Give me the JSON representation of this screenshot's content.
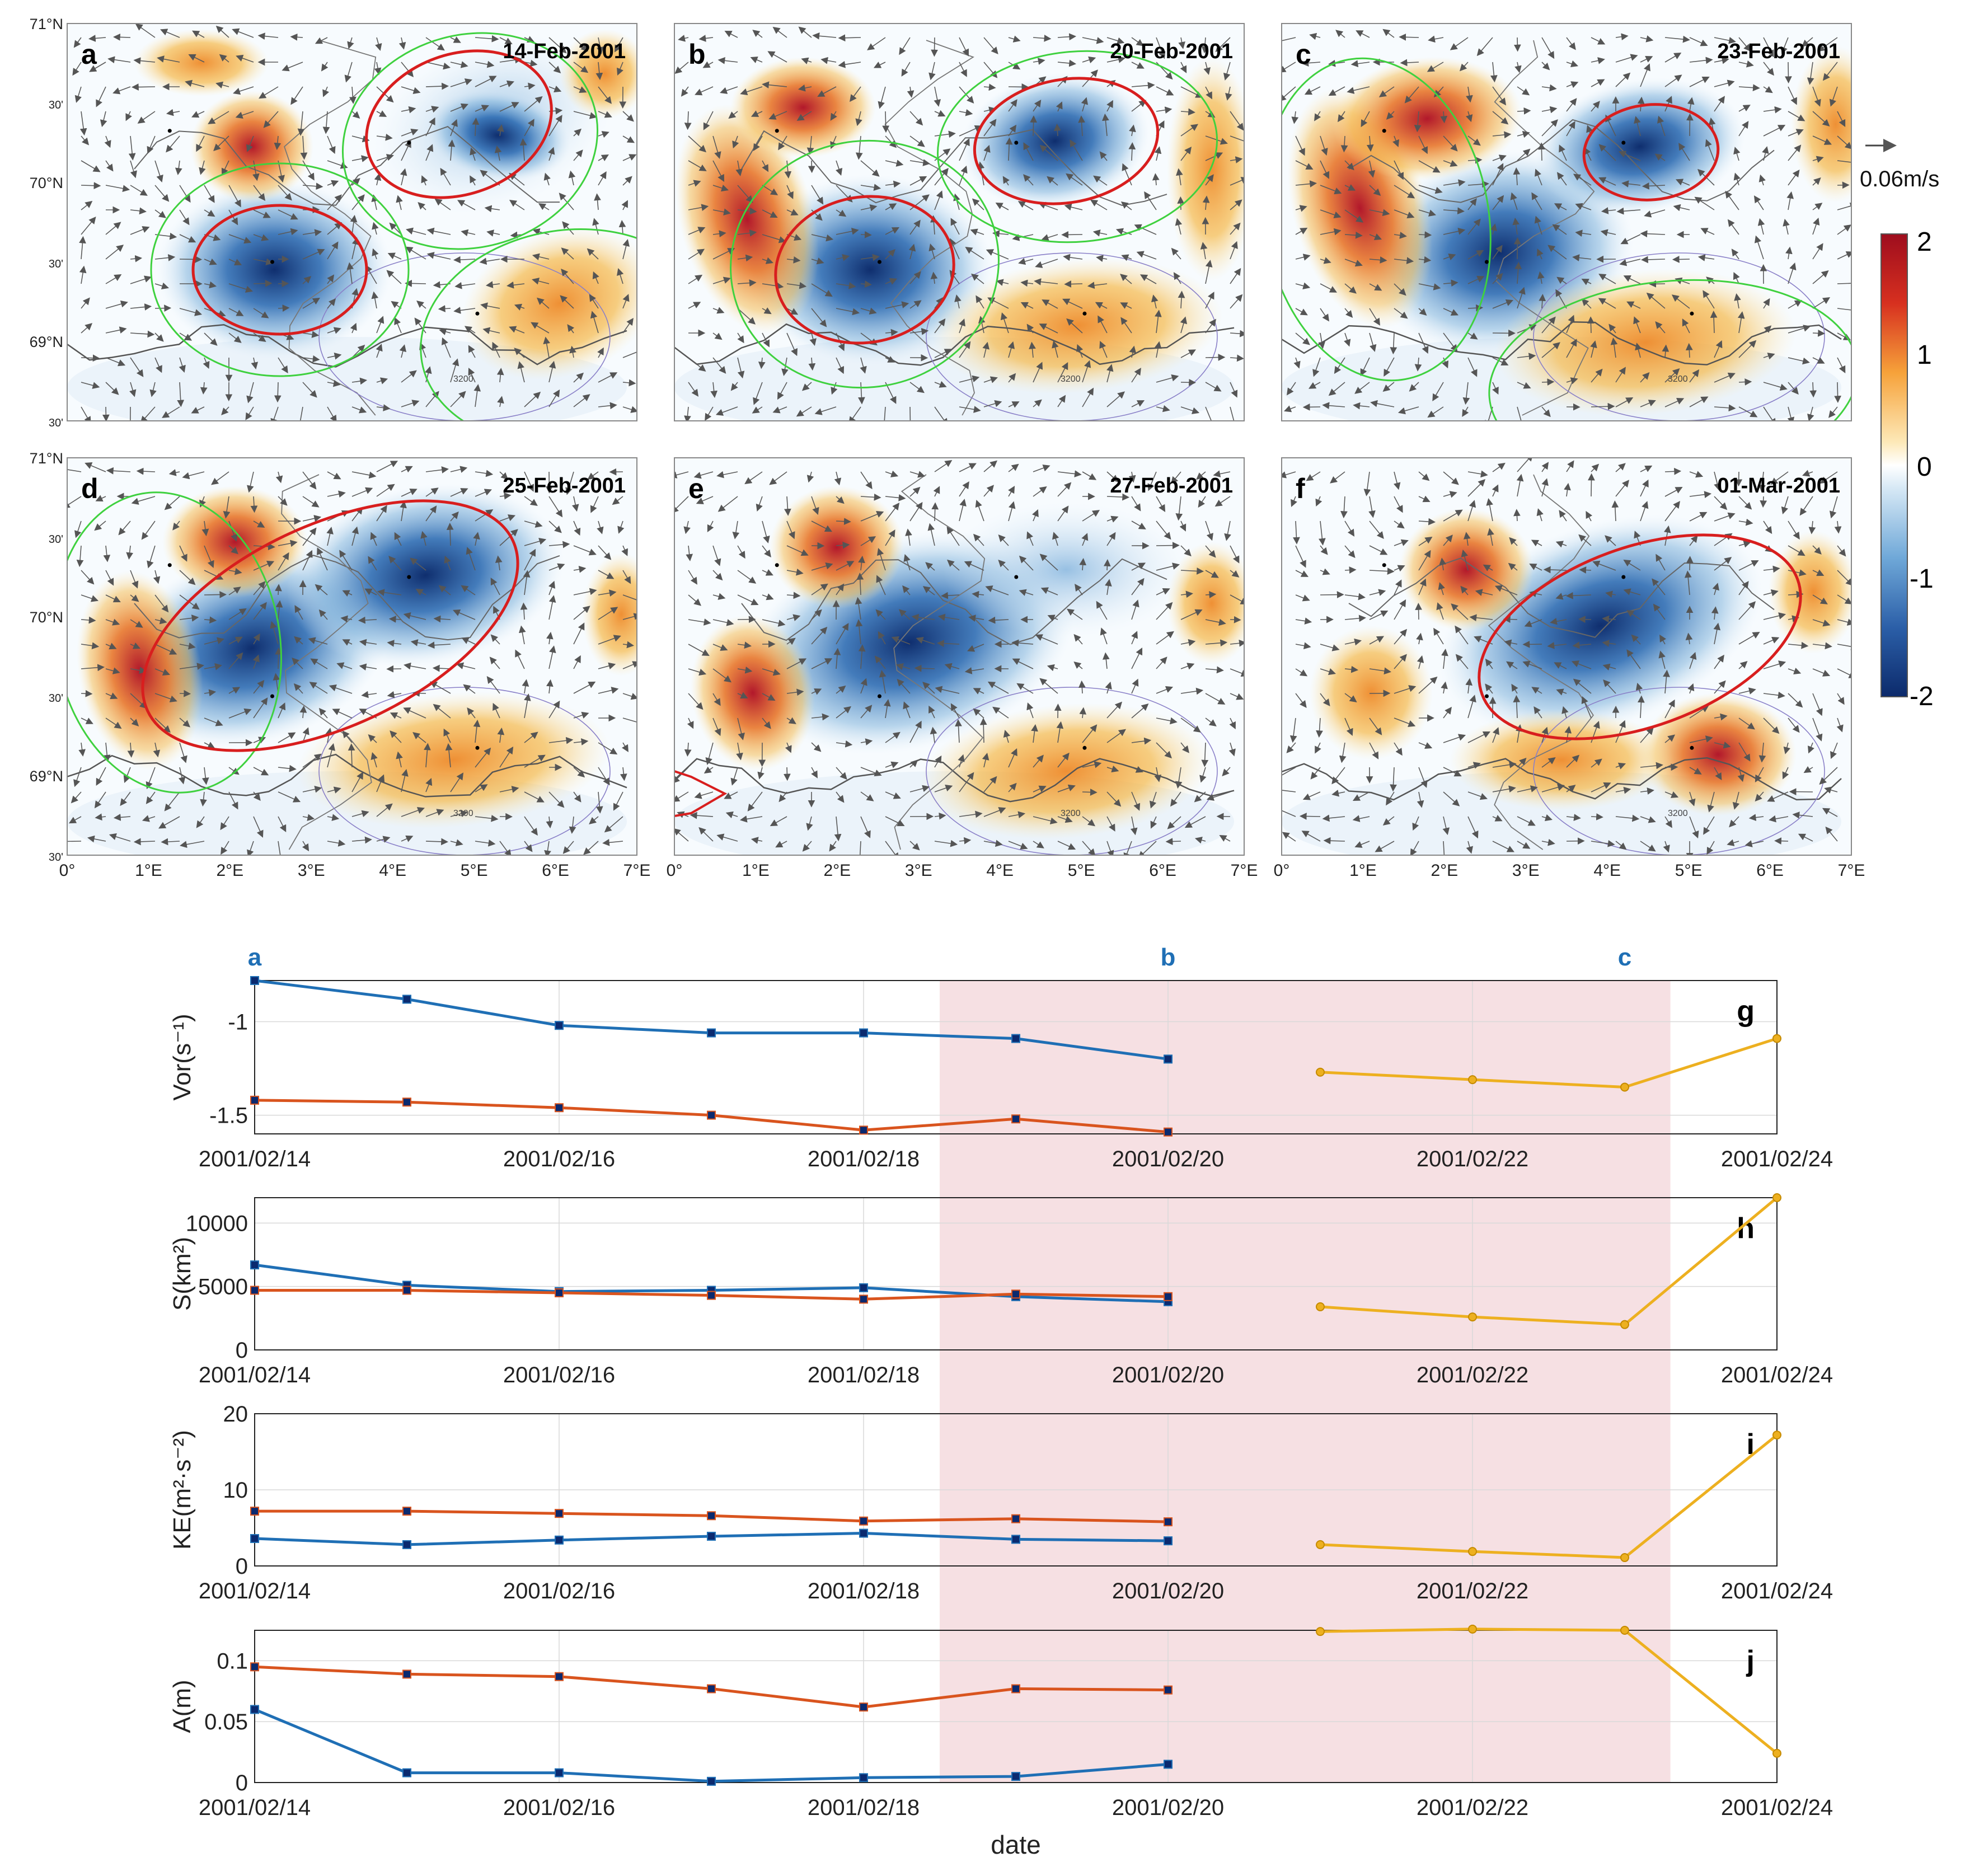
{
  "maps": {
    "panels": [
      {
        "letter": "a",
        "date": "14-Feb-2001"
      },
      {
        "letter": "b",
        "date": "20-Feb-2001"
      },
      {
        "letter": "c",
        "date": "23-Feb-2001"
      },
      {
        "letter": "d",
        "date": "25-Feb-2001"
      },
      {
        "letter": "e",
        "date": "27-Feb-2001"
      },
      {
        "letter": "f",
        "date": "01-Mar-2001"
      }
    ],
    "lat_labels": [
      "71°N",
      "30'",
      "70°N",
      "30'",
      "69°N",
      "30'"
    ],
    "lon_labels": [
      "0°",
      "1°E",
      "2°E",
      "3°E",
      "4°E",
      "5°E",
      "6°E",
      "7°E"
    ],
    "contour_label": "3200",
    "vector_scale": "0.06m/s",
    "colorbar": {
      "ticks": [
        "2",
        "1",
        "0",
        "-1",
        "-2"
      ],
      "min": -2,
      "max": 2
    }
  },
  "chart_data": [
    {
      "type": "line",
      "panel": "g",
      "ylabel": "Vor(s⁻¹)",
      "ylim": [
        -1.6,
        -0.78
      ],
      "yticks": [
        "-1",
        "-1.5"
      ],
      "x": [
        "2001/02/14",
        "2001/02/16",
        "2001/02/18",
        "2001/02/20",
        "2001/02/22",
        "2001/02/24"
      ],
      "series": [
        {
          "name": "blue",
          "color": "#1f6fb5",
          "x": [
            0,
            1,
            2,
            3,
            4,
            5,
            6
          ],
          "y": [
            -0.78,
            -0.88,
            -1.02,
            -1.06,
            -1.06,
            -1.09,
            -1.2
          ]
        },
        {
          "name": "red",
          "color": "#d9541e",
          "x": [
            0,
            1,
            2,
            3,
            4,
            5,
            6
          ],
          "y": [
            -1.42,
            -1.43,
            -1.46,
            -1.5,
            -1.58,
            -1.52,
            -1.59
          ]
        },
        {
          "name": "yellow",
          "color": "#edb020",
          "x": [
            7,
            8,
            9,
            10
          ],
          "y": [
            -1.27,
            -1.31,
            -1.35,
            -1.09
          ]
        }
      ]
    },
    {
      "type": "line",
      "panel": "h",
      "ylabel": "S(km²)",
      "ylim": [
        0,
        12000
      ],
      "yticks": [
        "0",
        "5000",
        "10000"
      ],
      "series": [
        {
          "name": "blue",
          "color": "#1f6fb5",
          "x": [
            0,
            1,
            2,
            3,
            4,
            5,
            6
          ],
          "y": [
            6700,
            5100,
            4600,
            4700,
            4900,
            4200,
            3800
          ]
        },
        {
          "name": "red",
          "color": "#d9541e",
          "x": [
            0,
            1,
            2,
            3,
            4,
            5,
            6
          ],
          "y": [
            4700,
            4700,
            4500,
            4300,
            4000,
            4400,
            4200
          ]
        },
        {
          "name": "yellow",
          "color": "#edb020",
          "x": [
            7,
            8,
            9,
            10
          ],
          "y": [
            3400,
            2600,
            2000,
            12000
          ]
        }
      ]
    },
    {
      "type": "line",
      "panel": "i",
      "ylabel": "KE(m²·s⁻²)",
      "ylim": [
        0,
        20
      ],
      "yticks": [
        "0",
        "10",
        "20"
      ],
      "series": [
        {
          "name": "blue",
          "color": "#1f6fb5",
          "x": [
            0,
            1,
            2,
            3,
            4,
            5,
            6
          ],
          "y": [
            3.6,
            2.8,
            3.4,
            3.9,
            4.3,
            3.5,
            3.3
          ]
        },
        {
          "name": "red",
          "color": "#d9541e",
          "x": [
            0,
            1,
            2,
            3,
            4,
            5,
            6
          ],
          "y": [
            7.2,
            7.2,
            6.9,
            6.6,
            5.9,
            6.2,
            5.8
          ]
        },
        {
          "name": "yellow",
          "color": "#edb020",
          "x": [
            7,
            8,
            9,
            10
          ],
          "y": [
            2.8,
            1.9,
            1.1,
            17.2
          ]
        }
      ]
    },
    {
      "type": "line",
      "panel": "j",
      "ylabel": "A(m)",
      "xlabel": "date",
      "ylim": [
        0,
        0.125
      ],
      "yticks": [
        "0",
        "0.05",
        "0.1"
      ],
      "series": [
        {
          "name": "blue",
          "color": "#1f6fb5",
          "x": [
            0,
            1,
            2,
            3,
            4,
            5,
            6
          ],
          "y": [
            0.06,
            0.008,
            0.008,
            0.001,
            0.004,
            0.005,
            0.015
          ]
        },
        {
          "name": "red",
          "color": "#d9541e",
          "x": [
            0,
            1,
            2,
            3,
            4,
            5,
            6
          ],
          "y": [
            0.095,
            0.089,
            0.087,
            0.077,
            0.062,
            0.077,
            0.076
          ]
        },
        {
          "name": "yellow",
          "color": "#edb020",
          "x": [
            7,
            8,
            9,
            10
          ],
          "y": [
            0.124,
            0.126,
            0.125,
            0.024
          ]
        }
      ]
    }
  ],
  "timeseries": {
    "x_ticks": [
      "2001/02/14",
      "2001/02/16",
      "2001/02/18",
      "2001/02/20",
      "2001/02/22",
      "2001/02/24"
    ],
    "top_markers": [
      {
        "label": "a",
        "day": 0
      },
      {
        "label": "b",
        "day": 6
      },
      {
        "label": "c",
        "day": 9
      }
    ],
    "shaded_range": [
      4.5,
      9.3
    ],
    "xlabel": "date"
  },
  "colors": {
    "blue": "#1f6fb5",
    "red": "#d9541e",
    "yellow": "#edb020",
    "shade": "#f6e0e3",
    "marker_blue": "#0b2a6f"
  }
}
